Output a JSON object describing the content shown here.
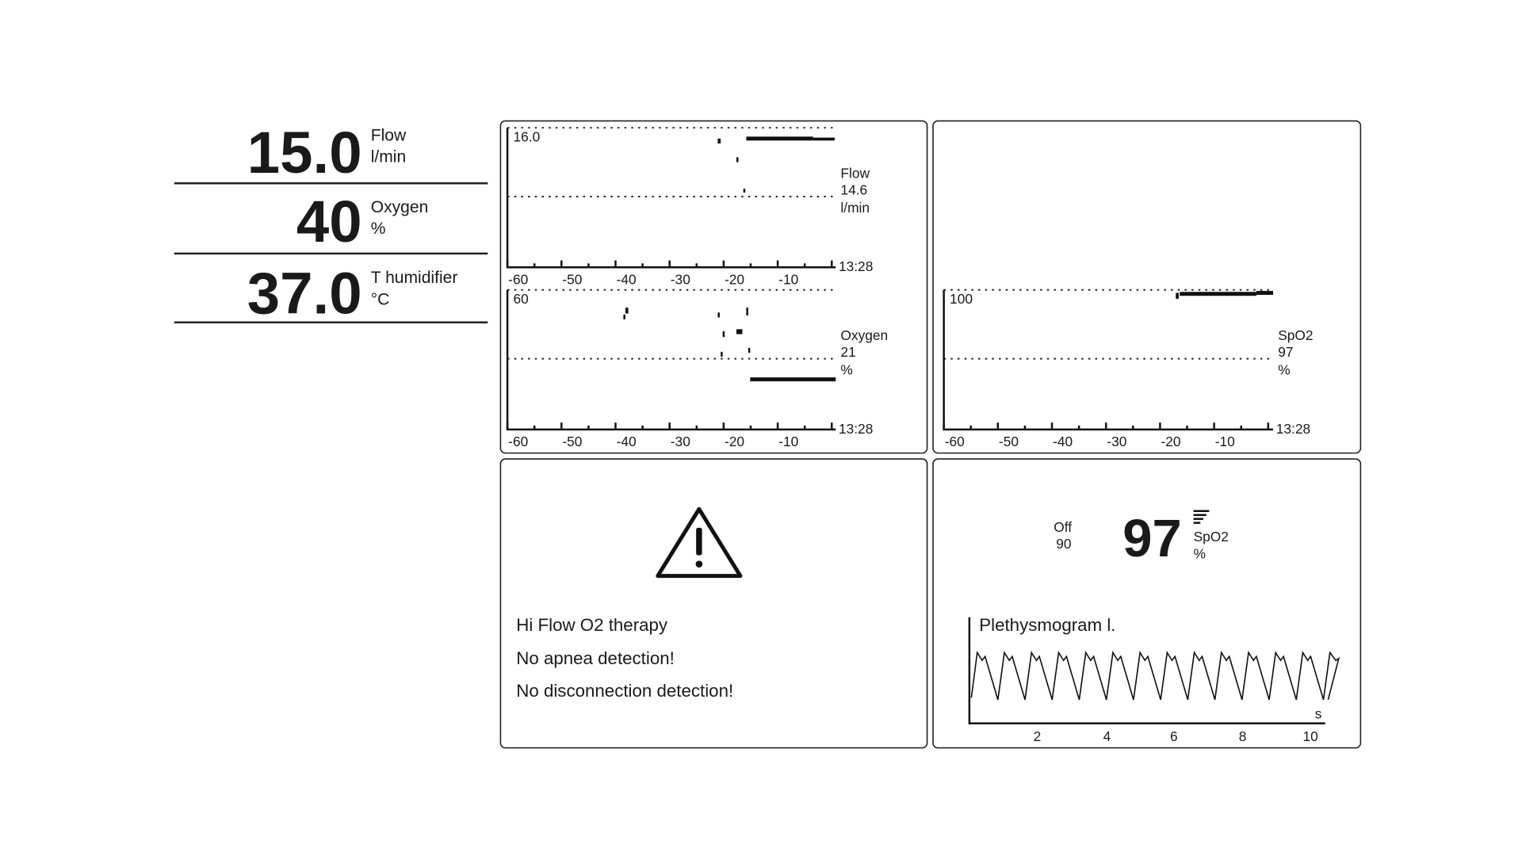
{
  "readouts": [
    {
      "value": "15.0",
      "name": "Flow",
      "unit": "l/min"
    },
    {
      "value": "40",
      "name": "Oxygen",
      "unit": "%"
    },
    {
      "value": "37.0",
      "name": "T humidifier",
      "unit": "°C"
    }
  ],
  "trends": [
    {
      "scale_top": "16.0",
      "name": "Flow",
      "value": "14.6",
      "unit": "l/min",
      "time": "13:28",
      "ticks": [
        "-60",
        "-50",
        "-40",
        "-30",
        "-20",
        "-10"
      ]
    },
    {
      "scale_top": "60",
      "name": "Oxygen",
      "value": "21",
      "unit": "%",
      "time": "13:28",
      "ticks": [
        "-60",
        "-50",
        "-40",
        "-30",
        "-20",
        "-10"
      ]
    },
    {
      "scale_top": "100",
      "name": "SpO2",
      "value": "97",
      "unit": "%",
      "time": "13:28",
      "ticks": [
        "-60",
        "-50",
        "-40",
        "-30",
        "-20",
        "-10"
      ]
    }
  ],
  "warning": {
    "messages": [
      "Hi Flow O2 therapy",
      "No apnea detection!",
      "No disconnection detection!"
    ]
  },
  "spo2_panel": {
    "alarm_status": "Off",
    "alarm_limit": "90",
    "value": "97",
    "name": "SpO2",
    "unit": "%",
    "pleth_title": "Plethysmogram l.",
    "x_ticks": [
      "2",
      "4",
      "6",
      "8",
      "10"
    ],
    "x_unit": "s"
  }
}
